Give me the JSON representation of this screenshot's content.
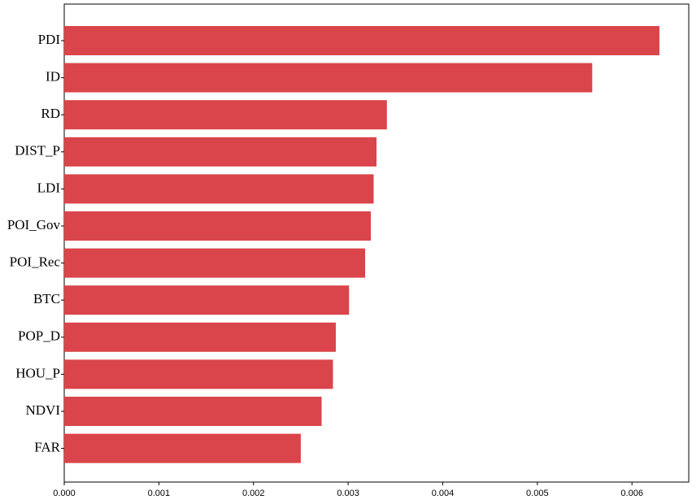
{
  "chart_data": {
    "type": "barh",
    "categories": [
      "PDI",
      "ID",
      "RD",
      "DIST_P",
      "LDI",
      "POI_Gov",
      "POI_Rec",
      "BTC",
      "POP_D",
      "HOU_P",
      "NDVI",
      "FAR"
    ],
    "values": [
      0.00629,
      0.00558,
      0.00341,
      0.0033,
      0.00327,
      0.00324,
      0.00318,
      0.00301,
      0.00287,
      0.00284,
      0.00272,
      0.0025
    ],
    "color": "#d9454a",
    "xlim": [
      0,
      0.0066
    ],
    "xticks": [
      {
        "value": 0,
        "label": "0.000"
      },
      0.001,
      0.002,
      0.003,
      0.004,
      0.005,
      0.006
    ]
  }
}
